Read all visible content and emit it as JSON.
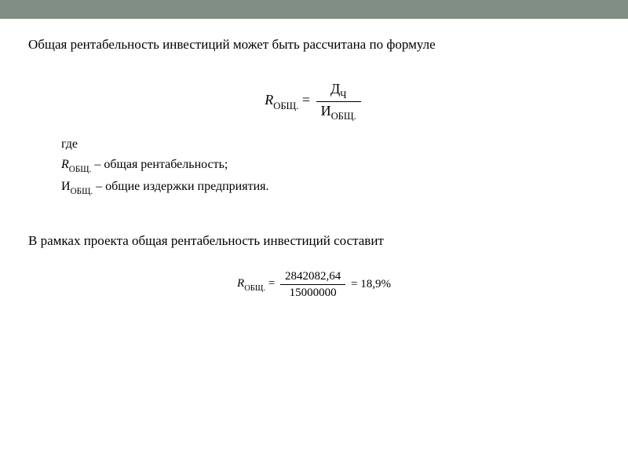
{
  "colors": {
    "header_bar": "#818e84",
    "background": "#ffffff",
    "text": "#000000"
  },
  "typography": {
    "body_font": "Times New Roman",
    "body_size_pt": 13,
    "formula_size_pt": 14,
    "calc_size_pt": 11
  },
  "intro_text": "Общая рентабельность инвестиций может быть рассчитана по формуле",
  "formula1": {
    "lhs_symbol": "R",
    "lhs_subscript": "ОБЩ.",
    "numerator_symbol": "Д",
    "numerator_sub": "Ч",
    "denominator_symbol": "И",
    "denominator_sub": "ОБЩ."
  },
  "defs": {
    "where": "где",
    "line1_symbol": "R",
    "line1_sub": "ОБЩ.",
    "line1_text": " –  общая рентабельность;",
    "line2_symbol": "И",
    "line2_sub": "ОБЩ.",
    "line2_text": " – общие издержки предприятия."
  },
  "paragraph2": "В рамках проекта общая рентабельность инвестиций составит",
  "formula2": {
    "lhs_symbol": "R",
    "lhs_sub": "ОБЩ.",
    "numerator": "2842082,64",
    "denominator": "15000000",
    "result": "18,9%"
  }
}
